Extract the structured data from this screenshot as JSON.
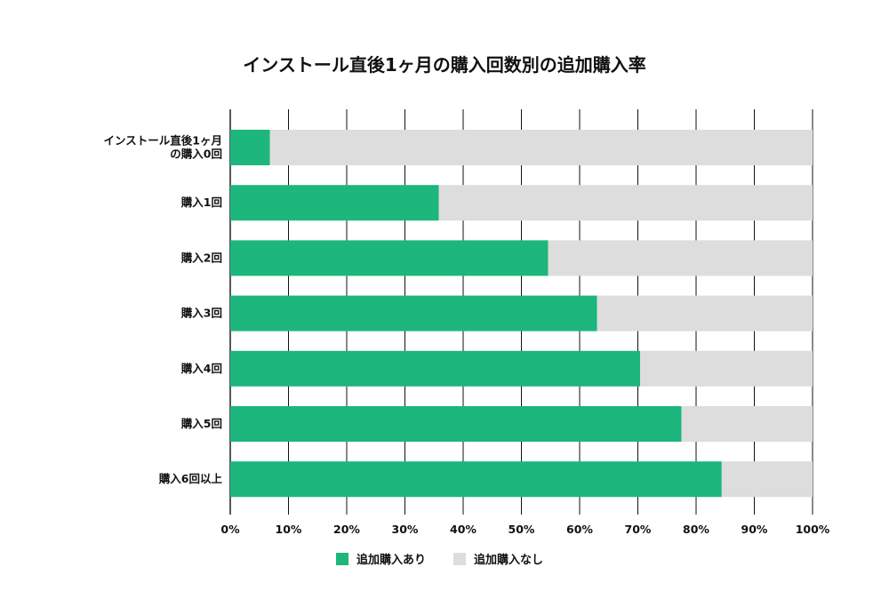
{
  "chart_data": {
    "type": "bar",
    "orientation": "horizontal",
    "stacked": "percent",
    "title": "インストール直後1ヶ月の購入回数別の追加購入率",
    "categories": [
      [
        "インストール直後1ヶ月",
        "の購入0回"
      ],
      [
        "購入1回"
      ],
      [
        "購入2回"
      ],
      [
        "購入3回"
      ],
      [
        "購入4回"
      ],
      [
        "購入5回"
      ],
      [
        "購入6回以上"
      ]
    ],
    "series": [
      {
        "name": "追加購入あり",
        "color": "#1db67d",
        "values": [
          6.8,
          35.8,
          54.6,
          63.0,
          70.4,
          77.5,
          84.4
        ]
      },
      {
        "name": "追加購入なし",
        "color": "#dddddd",
        "values": [
          93.2,
          64.2,
          45.4,
          37.0,
          29.6,
          22.5,
          15.6
        ]
      }
    ],
    "xlim": [
      0,
      100
    ],
    "xticks": [
      0,
      10,
      20,
      30,
      40,
      50,
      60,
      70,
      80,
      90,
      100
    ],
    "tick_suffix": "%",
    "grid": true,
    "legend_position": "bottom"
  }
}
